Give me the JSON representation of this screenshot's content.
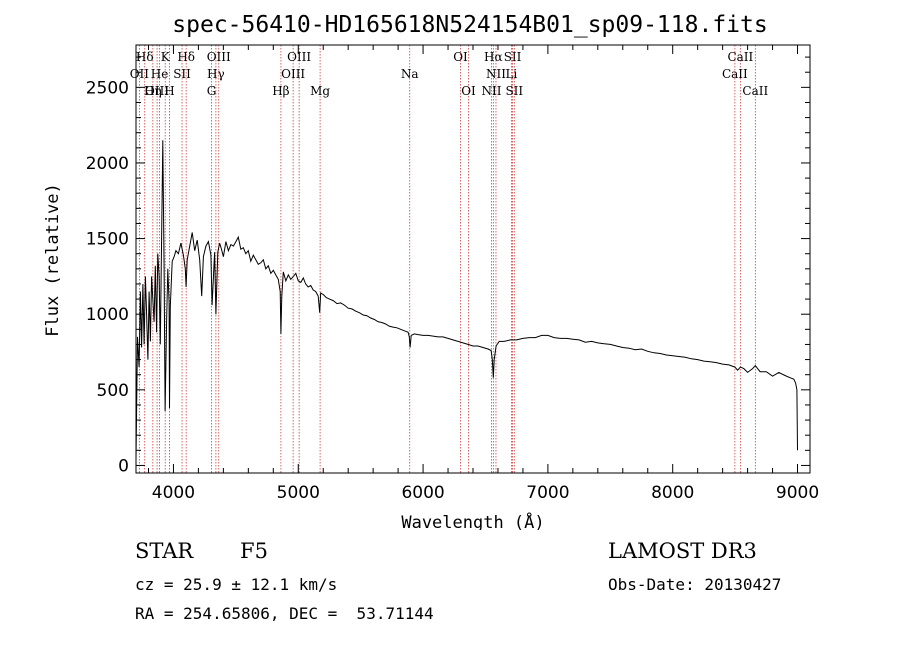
{
  "chart_data": {
    "type": "line",
    "title": "spec-56410-HD165618N524154B01_sp09-118.fits",
    "xlabel": "Wavelength (Å)",
    "ylabel": "Flux (relative)",
    "xlim": [
      3700,
      9100
    ],
    "ylim": [
      -50,
      2780
    ],
    "xticks": [
      4000,
      5000,
      6000,
      7000,
      8000,
      9000
    ],
    "yticks": [
      0,
      500,
      1000,
      1500,
      2000,
      2500
    ],
    "series": [
      {
        "name": "spectrum",
        "x": [
          3700,
          3712,
          3725,
          3735,
          3745,
          3755,
          3765,
          3775,
          3785,
          3795,
          3805,
          3815,
          3825,
          3835,
          3845,
          3855,
          3865,
          3875,
          3885,
          3895,
          3905,
          3915,
          3925,
          3933,
          3945,
          3955,
          3965,
          3968,
          3975,
          3990,
          4005,
          4020,
          4040,
          4060,
          4080,
          4095,
          4101,
          4110,
          4130,
          4150,
          4170,
          4190,
          4210,
          4226,
          4240,
          4260,
          4280,
          4300,
          4310,
          4330,
          4340,
          4355,
          4370,
          4385,
          4400,
          4420,
          4440,
          4460,
          4480,
          4500,
          4520,
          4540,
          4560,
          4580,
          4600,
          4620,
          4640,
          4660,
          4680,
          4700,
          4720,
          4740,
          4760,
          4780,
          4800,
          4820,
          4840,
          4855,
          4861,
          4868,
          4880,
          4900,
          4920,
          4940,
          4960,
          4980,
          5000,
          5020,
          5040,
          5060,
          5080,
          5100,
          5120,
          5140,
          5160,
          5172,
          5180,
          5200,
          5225,
          5250,
          5280,
          5310,
          5340,
          5370,
          5400,
          5430,
          5460,
          5490,
          5520,
          5550,
          5580,
          5610,
          5640,
          5670,
          5700,
          5730,
          5760,
          5790,
          5820,
          5850,
          5880,
          5890,
          5896,
          5905,
          5930,
          5960,
          6000,
          6040,
          6080,
          6120,
          6160,
          6200,
          6240,
          6280,
          6320,
          6360,
          6400,
          6440,
          6480,
          6520,
          6545,
          6555,
          6563,
          6570,
          6585,
          6610,
          6650,
          6700,
          6750,
          6800,
          6850,
          6900,
          6950,
          7000,
          7050,
          7100,
          7150,
          7200,
          7250,
          7300,
          7350,
          7400,
          7450,
          7500,
          7550,
          7600,
          7650,
          7700,
          7750,
          7800,
          7850,
          7900,
          7950,
          8000,
          8050,
          8100,
          8150,
          8200,
          8250,
          8300,
          8350,
          8400,
          8450,
          8498,
          8520,
          8542,
          8570,
          8600,
          8640,
          8662,
          8700,
          8750,
          8800,
          8850,
          8900,
          8940,
          8970,
          8985,
          8995,
          9000
        ],
        "y": [
          40,
          850,
          650,
          1150,
          780,
          1200,
          800,
          1250,
          1000,
          700,
          1150,
          820,
          1250,
          1100,
          950,
          1320,
          880,
          1400,
          1250,
          800,
          1500,
          2150,
          1300,
          360,
          950,
          1300,
          1080,
          380,
          1050,
          1350,
          1380,
          1420,
          1400,
          1470,
          1390,
          1300,
          1180,
          1360,
          1450,
          1540,
          1420,
          1490,
          1360,
          1120,
          1380,
          1450,
          1480,
          1390,
          1060,
          1410,
          1000,
          1410,
          1470,
          1430,
          1380,
          1480,
          1420,
          1460,
          1450,
          1480,
          1510,
          1430,
          1440,
          1400,
          1420,
          1350,
          1390,
          1360,
          1330,
          1340,
          1360,
          1300,
          1320,
          1270,
          1290,
          1260,
          1230,
          1150,
          870,
          1120,
          1280,
          1220,
          1260,
          1230,
          1250,
          1270,
          1220,
          1210,
          1240,
          1200,
          1180,
          1190,
          1160,
          1150,
          1120,
          1010,
          1140,
          1130,
          1110,
          1100,
          1090,
          1070,
          1075,
          1060,
          1040,
          1035,
          1020,
          1010,
          995,
          990,
          975,
          965,
          950,
          945,
          935,
          920,
          915,
          910,
          900,
          890,
          880,
          850,
          780,
          860,
          870,
          865,
          860,
          860,
          855,
          850,
          850,
          840,
          830,
          820,
          810,
          800,
          790,
          790,
          780,
          770,
          760,
          700,
          580,
          700,
          790,
          820,
          820,
          830,
          830,
          840,
          845,
          845,
          860,
          860,
          845,
          840,
          840,
          835,
          830,
          815,
          820,
          810,
          805,
          800,
          790,
          780,
          775,
          765,
          770,
          755,
          745,
          740,
          730,
          725,
          720,
          715,
          705,
          700,
          690,
          685,
          680,
          670,
          665,
          650,
          630,
          650,
          640,
          615,
          640,
          660,
          620,
          620,
          590,
          615,
          595,
          580,
          570,
          545,
          500,
          100
        ]
      }
    ],
    "line_markers": [
      {
        "label": "Hδ",
        "x": 3770,
        "row": 1
      },
      {
        "label": "K",
        "x": 3934,
        "row": 1
      },
      {
        "label": "Hδ",
        "x": 4102,
        "row": 1
      },
      {
        "label": "OIII",
        "x": 4363,
        "row": 1
      },
      {
        "label": "OIII",
        "x": 5007,
        "row": 1
      },
      {
        "label": "OI",
        "x": 6300,
        "row": 1
      },
      {
        "label": "Hα",
        "x": 6563,
        "row": 1
      },
      {
        "label": "SII",
        "x": 6717,
        "row": 1
      },
      {
        "label": "CaII",
        "x": 8542,
        "row": 1
      },
      {
        "label": "OII",
        "x": 3727,
        "row": 2
      },
      {
        "label": "He",
        "x": 3889,
        "row": 2
      },
      {
        "label": "SII",
        "x": 4069,
        "row": 2
      },
      {
        "label": "Hγ",
        "x": 4340,
        "row": 2
      },
      {
        "label": "OIII",
        "x": 4959,
        "row": 2
      },
      {
        "label": "Na",
        "x": 5893,
        "row": 2
      },
      {
        "label": "NII",
        "x": 6584,
        "row": 2
      },
      {
        "label": "Li",
        "x": 6708,
        "row": 2
      },
      {
        "label": "CaII",
        "x": 8498,
        "row": 2
      },
      {
        "label": "OIII",
        "x": 3869,
        "row": 3
      },
      {
        "label": "Hη",
        "x": 3835,
        "row": 3
      },
      {
        "label": "H",
        "x": 3968,
        "row": 3
      },
      {
        "label": "G",
        "x": 4305,
        "row": 3
      },
      {
        "label": "Hβ",
        "x": 4861,
        "row": 3
      },
      {
        "label": "Mg",
        "x": 5175,
        "row": 3
      },
      {
        "label": "OI",
        "x": 6364,
        "row": 3
      },
      {
        "label": "NII",
        "x": 6548,
        "row": 3
      },
      {
        "label": "SII",
        "x": 6731,
        "row": 3
      },
      {
        "label": "CaII",
        "x": 8662,
        "row": 3
      }
    ],
    "marker_color": "#d04040"
  },
  "info": {
    "object_class": "STAR",
    "subclass": "F5",
    "survey": "LAMOST DR3",
    "cz": "cz = 25.9 ± 12.1 km/s",
    "obs_date": "Obs-Date: 20130427",
    "coords": "RA = 254.65806, DEC =  53.71144"
  }
}
